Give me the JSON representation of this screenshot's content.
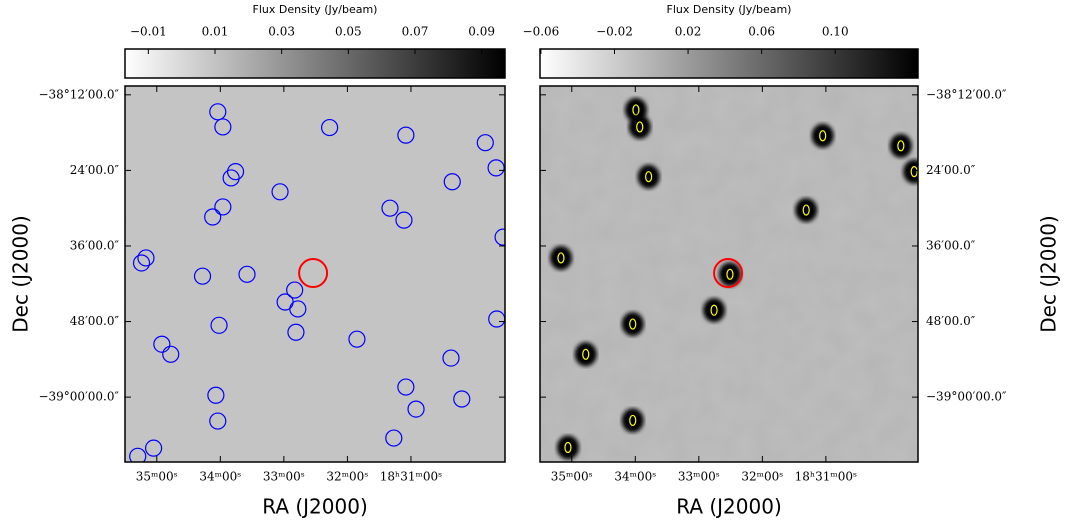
{
  "chart_data": [
    {
      "type": "scatter",
      "x_label": "RA (J2000)",
      "y_label": "Dec (J2000)",
      "y_axis_side": "left",
      "colorbar_label": "Flux Density (Jy/beam)",
      "cmap": [
        "#ffffff",
        "#000000"
      ],
      "background": "#c6c6c6",
      "clim": [
        -0.017,
        0.097
      ],
      "cticks": [
        {
          "value": -0.01,
          "label": "−0.01"
        },
        0.01,
        0.03,
        0.05,
        0.07,
        0.09
      ],
      "xlim": [
        35.5,
        29.52
      ],
      "ylim": [
        -2290.6,
        -2350.3
      ],
      "xticks": [
        {
          "value": 35,
          "label": "35ᵐ00ˢ"
        },
        {
          "value": 34,
          "label": "34ᵐ00ˢ"
        },
        {
          "value": 33,
          "label": "33ᵐ00ˢ"
        },
        {
          "value": 32,
          "label": "32ᵐ00ˢ"
        },
        {
          "value": 31,
          "label": "18ʰ31ᵐ00ˢ"
        }
      ],
      "yticks": [
        {
          "value": -2292,
          "label": "−38°12′00.0″"
        },
        {
          "value": -2304,
          "label": "24′00.0″"
        },
        {
          "value": -2316,
          "label": "36′00.0″"
        },
        {
          "value": -2328,
          "label": "48′00.0″"
        },
        {
          "value": -2340,
          "label": "−39°00′00.0″"
        }
      ],
      "series": [
        {
          "color": "#0000ff",
          "marker": "circle",
          "x": [
            34.04,
            33.96,
            32.28,
            31.08,
            29.83,
            29.66,
            33.76,
            33.83,
            30.35,
            33.06,
            33.96,
            31.33,
            34.12,
            31.11,
            29.55,
            35.17,
            35.24,
            34.28,
            33.58,
            32.83,
            32.98,
            32.78,
            34.02,
            29.65,
            32.81,
            31.85,
            34.92,
            34.78,
            30.37,
            31.08,
            34.07,
            30.2,
            30.92,
            34.04,
            31.27,
            35.05,
            35.3
          ],
          "values": [
            -2294.7,
            -2297.1,
            -2297.2,
            -2298.4,
            -2299.6,
            -2303.6,
            -2304.2,
            -2305.2,
            -2305.8,
            -2307.4,
            -2309.8,
            -2310.0,
            -2311.4,
            -2311.9,
            -2314.6,
            -2317.9,
            -2318.7,
            -2320.8,
            -2320.5,
            -2323.0,
            -2324.9,
            -2326.0,
            -2328.6,
            -2327.6,
            -2329.7,
            -2330.8,
            -2331.6,
            -2333.2,
            -2333.8,
            -2338.4,
            -2339.7,
            -2340.3,
            -2341.9,
            -2343.8,
            -2346.5,
            -2348.1,
            -2349.4
          ]
        },
        {
          "color": "#ff0000",
          "marker": "big-circle",
          "x": [
            32.54
          ],
          "values": [
            -2320.3
          ]
        }
      ]
    },
    {
      "type": "scatter",
      "x_label": "RA (J2000)",
      "y_label": "Dec (J2000)",
      "y_axis_side": "right",
      "colorbar_label": "Flux Density (Jy/beam)",
      "cmap": [
        "#ffffff",
        "#000000"
      ],
      "background": "#bdbdbd",
      "clim": [
        -0.0605,
        0.145
      ],
      "cticks": [
        {
          "value": -0.06,
          "label": "−0.06"
        },
        {
          "value": -0.02,
          "label": "−0.02"
        },
        0.02,
        0.06,
        {
          "value": 0.1,
          "label": "0.10"
        }
      ],
      "xlim": [
        35.5,
        29.55
      ],
      "ylim": [
        -2290.6,
        -2350.3
      ],
      "xticks": [
        {
          "value": 35,
          "label": "35ᵐ00ˢ"
        },
        {
          "value": 34,
          "label": "34ᵐ00ˢ"
        },
        {
          "value": 33,
          "label": "33ᵐ00ˢ"
        },
        {
          "value": 32,
          "label": "32ᵐ00ˢ"
        },
        {
          "value": 31,
          "label": "18ʰ31ᵐ00ˢ"
        }
      ],
      "yticks": [
        {
          "value": -2292,
          "label": "−38°12′00.0″"
        },
        {
          "value": -2304,
          "label": "24′00.0″"
        },
        {
          "value": -2316,
          "label": "36′00.0″"
        },
        {
          "value": -2328,
          "label": "48′00.0″"
        },
        {
          "value": -2340,
          "label": "−39°00′00.0″"
        }
      ],
      "series": [
        {
          "color": "#ffff00",
          "marker": "ellipse",
          "x": [
            33.99,
            33.93,
            31.05,
            29.82,
            29.61,
            33.79,
            31.31,
            35.17,
            32.51,
            32.76,
            34.04,
            34.78,
            34.04,
            35.06
          ],
          "values": [
            -2294.4,
            -2297.1,
            -2298.5,
            -2300.1,
            -2304.2,
            -2305.0,
            -2310.3,
            -2317.9,
            -2320.5,
            -2326.2,
            -2328.4,
            -2333.2,
            -2343.7,
            -2348.0
          ]
        },
        {
          "color": "#ff0000",
          "marker": "big-circle",
          "x": [
            32.54
          ],
          "values": [
            -2320.3
          ]
        }
      ]
    }
  ]
}
